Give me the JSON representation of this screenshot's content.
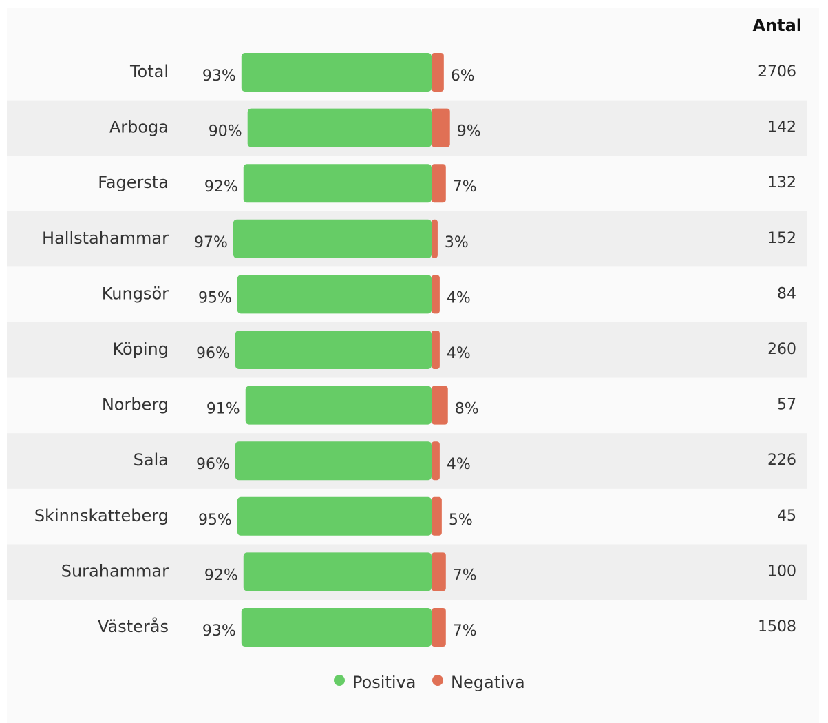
{
  "chart_data": {
    "type": "diverging_bar",
    "categories": [
      "Total",
      "Arboga",
      "Fagersta",
      "Hallstahammar",
      "Kungsör",
      "Köping",
      "Norberg",
      "Sala",
      "Skinnskatteberg",
      "Surahammar",
      "Västerås"
    ],
    "series": [
      {
        "name": "Positiva",
        "color": "#66cc66",
        "values": [
          93,
          90,
          92,
          97,
          95,
          96,
          91,
          96,
          95,
          92,
          93
        ],
        "value_labels": [
          "93%",
          "90%",
          "92%",
          "97%",
          "95%",
          "96%",
          "91%",
          "96%",
          "95%",
          "92%",
          "93%"
        ]
      },
      {
        "name": "Negativa",
        "color": "#e07055",
        "values": [
          6,
          9,
          7,
          3,
          4,
          4,
          8,
          4,
          5,
          7,
          7
        ],
        "value_labels": [
          "6%",
          "9%",
          "7%",
          "3%",
          "4%",
          "4%",
          "8%",
          "4%",
          "5%",
          "7%",
          "7%"
        ]
      }
    ],
    "count_header": "Antal",
    "counts": [
      2706,
      142,
      132,
      152,
      84,
      260,
      57,
      226,
      45,
      100,
      1508
    ]
  }
}
